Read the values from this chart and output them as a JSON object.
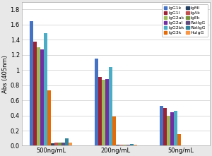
{
  "groups": [
    "500ng/mL",
    "200ng/mL",
    "50ng/mL"
  ],
  "series": [
    {
      "label": "IgG1k",
      "color": "#4472C4",
      "values": [
        1.65,
        1.15,
        0.53
      ]
    },
    {
      "label": "IgG1l",
      "color": "#9B2335",
      "values": [
        1.38,
        0.91,
        0.5
      ]
    },
    {
      "label": "IgG2ak",
      "color": "#9BBB59",
      "values": [
        1.3,
        0.87,
        0.4
      ]
    },
    {
      "label": "IgG2al",
      "color": "#7030A0",
      "values": [
        1.27,
        0.88,
        0.44
      ]
    },
    {
      "label": "IgG2bk",
      "color": "#4BACC6",
      "values": [
        1.49,
        1.04,
        0.46
      ]
    },
    {
      "label": "IgG3k",
      "color": "#E36C09",
      "values": [
        0.73,
        0.39,
        0.15
      ]
    },
    {
      "label": "IgMl",
      "color": "#243F60",
      "values": [
        0.035,
        0.012,
        0.004
      ]
    },
    {
      "label": "IgAk",
      "color": "#C0504D",
      "values": [
        0.04,
        0.012,
        0.004
      ]
    },
    {
      "label": "IgEk",
      "color": "#77933C",
      "values": [
        0.04,
        0.012,
        0.004
      ]
    },
    {
      "label": "RatIgG",
      "color": "#604A7B",
      "values": [
        0.04,
        0.012,
        0.004
      ]
    },
    {
      "label": "RbtIgG",
      "color": "#31849B",
      "values": [
        0.1,
        0.025,
        0.004
      ]
    },
    {
      "label": "HuIgG",
      "color": "#F79646",
      "values": [
        0.04,
        0.012,
        0.004
      ]
    }
  ],
  "legend_col1": [
    "IgG1k",
    "IgG2ak",
    "IgG2bk",
    "IgMl",
    "IgEk",
    "RbtIgG"
  ],
  "legend_col2": [
    "IgG1l",
    "IgG2al",
    "IgG3k",
    "IgAk",
    "RatIgG",
    "HuIgG"
  ],
  "ylabel": "Abs (405nm)",
  "ylim": [
    0,
    1.9
  ],
  "yticks": [
    0.0,
    0.2,
    0.4,
    0.6,
    0.8,
    1.0,
    1.2,
    1.4,
    1.6,
    1.8
  ],
  "background_color": "#E8E8E8",
  "plot_bg_color": "#FFFFFF",
  "grid_color": "#CCCCCC"
}
